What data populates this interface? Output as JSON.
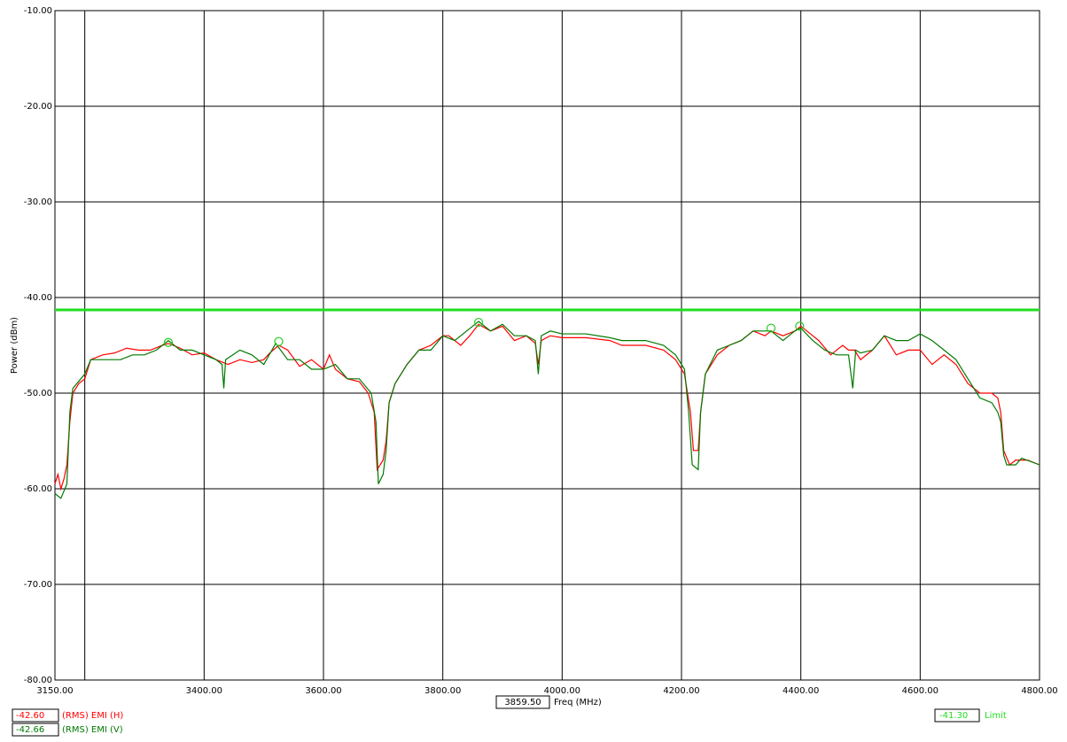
{
  "chart_data": {
    "type": "line",
    "xlabel": "Freq (MHz)",
    "ylabel": "Power (dBm)",
    "xlim": [
      3150,
      4800
    ],
    "ylim": [
      -80,
      -10
    ],
    "xticks": [
      {
        "value": 3150,
        "label": "3150.00"
      },
      {
        "value": 3200,
        "label": null
      },
      {
        "value": 3400,
        "label": "3400.00"
      },
      {
        "value": 3600,
        "label": "3600.00"
      },
      {
        "value": 3800,
        "label": "3800.00"
      },
      {
        "value": 4000,
        "label": "4000.00"
      },
      {
        "value": 4200,
        "label": "4200.00"
      },
      {
        "value": 4400,
        "label": "4400.00"
      },
      {
        "value": 4600,
        "label": "4600.00"
      },
      {
        "value": 4800,
        "label": "4800.00"
      }
    ],
    "yticks": [
      {
        "value": -10,
        "label": "-10.00"
      },
      {
        "value": -20,
        "label": "-20.00"
      },
      {
        "value": -30,
        "label": "-30.00"
      },
      {
        "value": -40,
        "label": "-40.00"
      },
      {
        "value": -50,
        "label": "-50.00"
      },
      {
        "value": -60,
        "label": "-60.00"
      },
      {
        "value": -70,
        "label": "-70.00"
      },
      {
        "value": -80,
        "label": "-80.00"
      }
    ],
    "grid": true,
    "marker_freq": "3859.50",
    "series": [
      {
        "name": "(RMS) EMI (H)",
        "color": "#ff0000",
        "readout": "-42.60",
        "x": [
          3150,
          3155,
          3160,
          3165,
          3170,
          3175,
          3180,
          3190,
          3200,
          3210,
          3230,
          3250,
          3270,
          3290,
          3310,
          3330,
          3340,
          3360,
          3380,
          3400,
          3420,
          3440,
          3460,
          3480,
          3500,
          3510,
          3525,
          3540,
          3560,
          3580,
          3600,
          3610,
          3620,
          3640,
          3660,
          3675,
          3685,
          3690,
          3700,
          3705,
          3710,
          3720,
          3740,
          3760,
          3780,
          3800,
          3810,
          3830,
          3845,
          3860,
          3880,
          3900,
          3920,
          3940,
          3955,
          3960,
          3965,
          3980,
          4000,
          4040,
          4080,
          4100,
          4140,
          4170,
          4190,
          4205,
          4215,
          4220,
          4228,
          4232,
          4240,
          4260,
          4280,
          4300,
          4320,
          4340,
          4350,
          4370,
          4390,
          4400,
          4410,
          4430,
          4450,
          4470,
          4480,
          4490,
          4500,
          4520,
          4540,
          4560,
          4580,
          4600,
          4620,
          4640,
          4660,
          4680,
          4700,
          4720,
          4730,
          4735,
          4740,
          4750,
          4760,
          4780,
          4800
        ],
        "values": [
          -59.5,
          -58.5,
          -60,
          -59,
          -57.5,
          -53,
          -50,
          -49,
          -48.5,
          -46.5,
          -46,
          -45.8,
          -45.3,
          -45.5,
          -45.5,
          -45,
          -44.8,
          -45.3,
          -46,
          -45.8,
          -46.5,
          -47,
          -46.5,
          -46.8,
          -46.5,
          -45.8,
          -45,
          -45.5,
          -47.2,
          -46.5,
          -47.5,
          -46,
          -47.5,
          -48.5,
          -48.8,
          -50,
          -52,
          -58,
          -57,
          -55,
          -51,
          -49,
          -47,
          -45.5,
          -45,
          -44,
          -44,
          -45,
          -44,
          -42.8,
          -43.5,
          -43,
          -44.5,
          -44,
          -44.8,
          -47,
          -44.5,
          -44,
          -44.2,
          -44.2,
          -44.5,
          -45,
          -45,
          -45.5,
          -46.5,
          -48,
          -52,
          -56,
          -56,
          -52,
          -48,
          -46,
          -45,
          -44.5,
          -43.5,
          -44,
          -43.5,
          -44,
          -43.5,
          -43,
          -43.5,
          -44.5,
          -46,
          -45,
          -45.5,
          -45.5,
          -46.5,
          -45.5,
          -44,
          -46,
          -45.5,
          -45.5,
          -47,
          -46,
          -47,
          -49,
          -50,
          -50,
          -50.5,
          -52,
          -56,
          -57.5,
          -57,
          -57,
          -57.5
        ]
      },
      {
        "name": "(RMS) EMI (V)",
        "color": "#007a00",
        "readout": "-42.66",
        "x": [
          3150,
          3160,
          3170,
          3175,
          3180,
          3200,
          3210,
          3240,
          3260,
          3280,
          3300,
          3320,
          3340,
          3360,
          3380,
          3400,
          3420,
          3430,
          3433,
          3436,
          3460,
          3480,
          3500,
          3520,
          3540,
          3560,
          3580,
          3600,
          3620,
          3640,
          3660,
          3680,
          3688,
          3692,
          3700,
          3705,
          3710,
          3720,
          3740,
          3760,
          3780,
          3800,
          3820,
          3840,
          3860,
          3880,
          3900,
          3920,
          3940,
          3955,
          3960,
          3965,
          3980,
          4000,
          4040,
          4080,
          4100,
          4140,
          4170,
          4190,
          4205,
          4212,
          4218,
          4228,
          4232,
          4240,
          4260,
          4280,
          4300,
          4320,
          4350,
          4370,
          4390,
          4400,
          4420,
          4440,
          4460,
          4480,
          4487,
          4492,
          4500,
          4520,
          4540,
          4560,
          4580,
          4600,
          4620,
          4640,
          4660,
          4680,
          4700,
          4720,
          4730,
          4735,
          4740,
          4745,
          4760,
          4770,
          4800
        ],
        "values": [
          -60.5,
          -61,
          -59.5,
          -52,
          -49.5,
          -48,
          -46.5,
          -46.5,
          -46.5,
          -46,
          -46,
          -45.5,
          -44.5,
          -45.5,
          -45.5,
          -46,
          -46.5,
          -47,
          -49.5,
          -46.5,
          -45.5,
          -46,
          -47,
          -44.8,
          -46.5,
          -46.5,
          -47.5,
          -47.5,
          -47,
          -48.5,
          -48.5,
          -50,
          -53,
          -59.5,
          -58.5,
          -56,
          -51,
          -49,
          -47,
          -45.5,
          -45.5,
          -44,
          -44.5,
          -43.5,
          -42.5,
          -43.5,
          -42.8,
          -44,
          -44,
          -44.5,
          -48,
          -44,
          -43.5,
          -43.8,
          -43.8,
          -44.2,
          -44.5,
          -44.5,
          -45,
          -46,
          -47.5,
          -52,
          -57.5,
          -58,
          -52,
          -48,
          -45.5,
          -45,
          -44.5,
          -43.5,
          -43.5,
          -44.5,
          -43.5,
          -43.2,
          -44.5,
          -45.5,
          -46,
          -46,
          -49.5,
          -45.5,
          -45.8,
          -45.5,
          -44,
          -44.5,
          -44.5,
          -43.8,
          -44.5,
          -45.5,
          -46.5,
          -48.5,
          -50.5,
          -51,
          -52,
          -53,
          -56.5,
          -57.5,
          -57.5,
          -56.8,
          -57.5
        ]
      }
    ],
    "limit": {
      "name": "Limit",
      "value": -41.3,
      "label": "-41.30",
      "color": "#22dd22"
    },
    "markers": {
      "color": "#22cc22",
      "x": [
        3340,
        3525,
        3860,
        4350,
        4398
      ],
      "y": [
        -44.7,
        -44.6,
        -42.6,
        -43.2,
        -43.0
      ]
    }
  }
}
